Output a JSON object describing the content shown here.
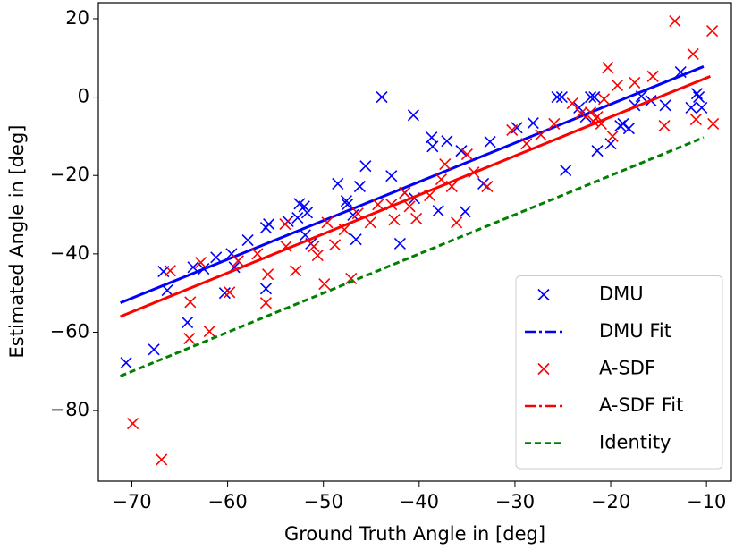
{
  "chart_data": {
    "type": "scatter",
    "xlabel": "Ground Truth Angle in [deg]",
    "ylabel": "Estimated Angle in [deg]",
    "xlim": [
      -73.5,
      -7.4
    ],
    "ylim": [
      -98,
      24.1
    ],
    "xticks": [
      {
        "value": -70,
        "label": "−70"
      },
      {
        "value": -60,
        "label": "−60"
      },
      {
        "value": -50,
        "label": "−50"
      },
      {
        "value": -40,
        "label": "−40"
      },
      {
        "value": -30,
        "label": "−30"
      },
      {
        "value": -20,
        "label": "−20"
      },
      {
        "value": -10,
        "label": "−10"
      }
    ],
    "yticks": [
      {
        "value": -80,
        "label": "−80"
      },
      {
        "value": -60,
        "label": "−60"
      },
      {
        "value": -40,
        "label": "−40"
      },
      {
        "value": -20,
        "label": "−20"
      },
      0,
      20
    ],
    "legend": "lower right",
    "series": [
      {
        "name": "DMU",
        "kind": "scatter",
        "color": "#0000ff",
        "x": [
          -70.6,
          -67.7,
          -66.3,
          -66.7,
          -64.2,
          -63.6,
          -62.5,
          -61.2,
          -60.3,
          -59.6,
          -59.3,
          -57.9,
          -56,
          -56,
          -55.7,
          -53.7,
          -52.7,
          -52.5,
          -52,
          -51.9,
          -51.7,
          -51.3,
          -48.5,
          -47.6,
          -46.9,
          -46.6,
          -46.2,
          -45.6,
          -47.5,
          -43.9,
          -42.9,
          -42,
          -41.5,
          -40.6,
          -40.5,
          -38.7,
          -38.6,
          -38,
          -37.1,
          -35.6,
          -35.2,
          -33.3,
          -32.6,
          -29.8,
          -28.1,
          -25.6,
          -25.1,
          -24.7,
          -23.3,
          -22.6,
          -22.1,
          -21.7,
          -21.4,
          -20,
          -19,
          -18.7,
          -18.1,
          -17.5,
          -16.8,
          -15.8,
          -14.3,
          -12.7,
          -11.6,
          -10.8,
          -10.5,
          -11
        ],
        "values": [
          -67.8,
          -64.4,
          -49.3,
          -44.5,
          -57.5,
          -43.4,
          -43.8,
          -40.9,
          -50,
          -40,
          -43.4,
          -36.5,
          -33.3,
          -48.9,
          -32.4,
          -31.7,
          -30.8,
          -27.2,
          -27.9,
          -35.2,
          -29.5,
          -37.4,
          -22.1,
          -26.5,
          -30.1,
          -36.3,
          -22.8,
          -17.6,
          -27.4,
          0,
          -20.1,
          -37.4,
          -24.4,
          -4.6,
          -25.8,
          -10.3,
          -12.6,
          -29,
          -11.2,
          -13.7,
          -29.2,
          -22.1,
          -11.4,
          -7.8,
          -6.6,
          0,
          0,
          -18.7,
          -2.7,
          -5,
          0,
          0,
          -13.7,
          -11.9,
          -7.3,
          -6.8,
          -8,
          -2.1,
          0.2,
          -0.9,
          -2.1,
          6.4,
          -2.7,
          0,
          -2.7,
          0.9
        ]
      },
      {
        "name": "DMU Fit",
        "kind": "line",
        "color": "#0000ff",
        "x": [
          -71.2,
          -10.3
        ],
        "values": [
          -52.5,
          7.8
        ]
      },
      {
        "name": "A-SDF",
        "kind": "scatter",
        "color": "#ff0000",
        "x": [
          -69.9,
          -66.9,
          -66,
          -64,
          -63.9,
          -61.9,
          -62.8,
          -59.8,
          -58.9,
          -56.9,
          -56,
          -55.8,
          -54,
          -53.9,
          -52.9,
          -51,
          -50.6,
          -49.9,
          -49.6,
          -48.8,
          -47.8,
          -47.1,
          -46.4,
          -45.1,
          -44.3,
          -42.9,
          -42.6,
          -41.5,
          -41,
          -40.3,
          -38.9,
          -37.7,
          -37.3,
          -36.6,
          -36.1,
          -35,
          -34.3,
          -32.9,
          -30.3,
          -28.8,
          -27.3,
          -25.9,
          -24,
          -23.1,
          -22.1,
          -21.8,
          -21.4,
          -21,
          -20.7,
          -20.3,
          -19.8,
          -19.3,
          -17.5,
          -15.6,
          -14.4,
          -13.3,
          -11.4,
          -11.1,
          -9.4,
          -9.3
        ],
        "values": [
          -83.3,
          -92.5,
          -44.3,
          -61.6,
          -52.3,
          -59.8,
          -42.2,
          -49.8,
          -41.8,
          -40,
          -52.5,
          -45.2,
          -32.4,
          -38.1,
          -44.3,
          -38.1,
          -40.4,
          -47.7,
          -32,
          -37.7,
          -33.8,
          -46.3,
          -29.7,
          -32,
          -27.4,
          -27.4,
          -31.3,
          -24.4,
          -27.9,
          -31,
          -25.1,
          -21,
          -17.1,
          -22.8,
          -32,
          -14.6,
          -19.2,
          -22.8,
          -8.4,
          -11.9,
          -9.6,
          -6.8,
          -1.6,
          -4.1,
          -3.9,
          -6.2,
          -5,
          -6.8,
          -0.5,
          7.5,
          -10,
          3,
          3.7,
          5.3,
          -7.3,
          19.4,
          11,
          -5.7,
          16.9,
          -6.8
        ]
      },
      {
        "name": "A-SDF Fit",
        "kind": "line",
        "color": "#ff0000",
        "x": [
          -71.2,
          -9.6
        ],
        "values": [
          -56,
          5.3
        ]
      },
      {
        "name": "Identity",
        "kind": "dashed",
        "color": "#008000",
        "x": [
          -71.2,
          -10.3
        ],
        "values": [
          -71.2,
          -10.3
        ]
      }
    ]
  }
}
